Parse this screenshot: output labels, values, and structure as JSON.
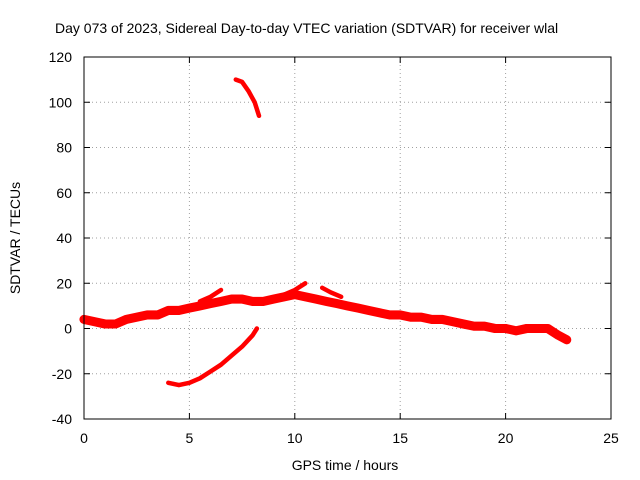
{
  "chart_data": {
    "type": "line",
    "title": "Day 073 of 2023, Sidereal Day-to-day VTEC variation (SDTVAR) for receiver wlal",
    "xlabel": "GPS time / hours",
    "ylabel": "SDTVAR / TECUs",
    "xlim": [
      0,
      25
    ],
    "ylim": [
      -40,
      120
    ],
    "xticks": [
      0,
      5,
      10,
      15,
      20,
      25
    ],
    "yticks": [
      -40,
      -20,
      0,
      20,
      40,
      60,
      80,
      100,
      120
    ],
    "grid": true,
    "color": "#ff0000",
    "series": [
      {
        "name": "main band",
        "band": 4,
        "x": [
          0,
          0.5,
          1,
          1.5,
          2,
          2.5,
          3,
          3.5,
          4,
          4.5,
          5,
          5.5,
          6,
          6.5,
          7,
          7.5,
          8,
          8.5,
          9,
          9.5,
          10,
          10.5,
          11,
          11.5,
          12,
          12.5,
          13,
          13.5,
          14,
          14.5,
          15,
          15.5,
          16,
          16.5,
          17,
          17.5,
          18,
          18.5,
          19,
          19.5,
          20,
          20.5,
          21,
          21.5,
          22,
          22.5,
          22.9
        ],
        "y": [
          4,
          3,
          2,
          2,
          4,
          5,
          6,
          6,
          8,
          8,
          9,
          10,
          11,
          12,
          13,
          13,
          12,
          12,
          13,
          14,
          15,
          14,
          13,
          12,
          11,
          10,
          9,
          8,
          7,
          6,
          6,
          5,
          5,
          4,
          4,
          3,
          2,
          1,
          1,
          0,
          0,
          -1,
          0,
          0,
          0,
          -3,
          -5
        ]
      },
      {
        "name": "upper streak 1",
        "band": 2,
        "x": [
          5.5,
          6,
          6.5
        ],
        "y": [
          12,
          14,
          17
        ]
      },
      {
        "name": "upper streak 2",
        "band": 2,
        "x": [
          9.5,
          10,
          10.5
        ],
        "y": [
          15,
          17,
          20
        ]
      },
      {
        "name": "upper streak 3",
        "band": 2,
        "x": [
          11.3,
          11.7,
          12.2
        ],
        "y": [
          18,
          16,
          14
        ]
      },
      {
        "name": "ascending arc",
        "band": 2,
        "x": [
          4,
          4.5,
          5,
          5.5,
          6,
          6.5,
          7,
          7.5,
          8,
          8.2
        ],
        "y": [
          -24,
          -25,
          -24,
          -22,
          -19,
          -16,
          -12,
          -8,
          -3,
          0
        ]
      },
      {
        "name": "high arc",
        "band": 2,
        "x": [
          7.2,
          7.5,
          7.8,
          8.1,
          8.3
        ],
        "y": [
          110,
          109,
          105,
          100,
          94
        ]
      }
    ]
  }
}
